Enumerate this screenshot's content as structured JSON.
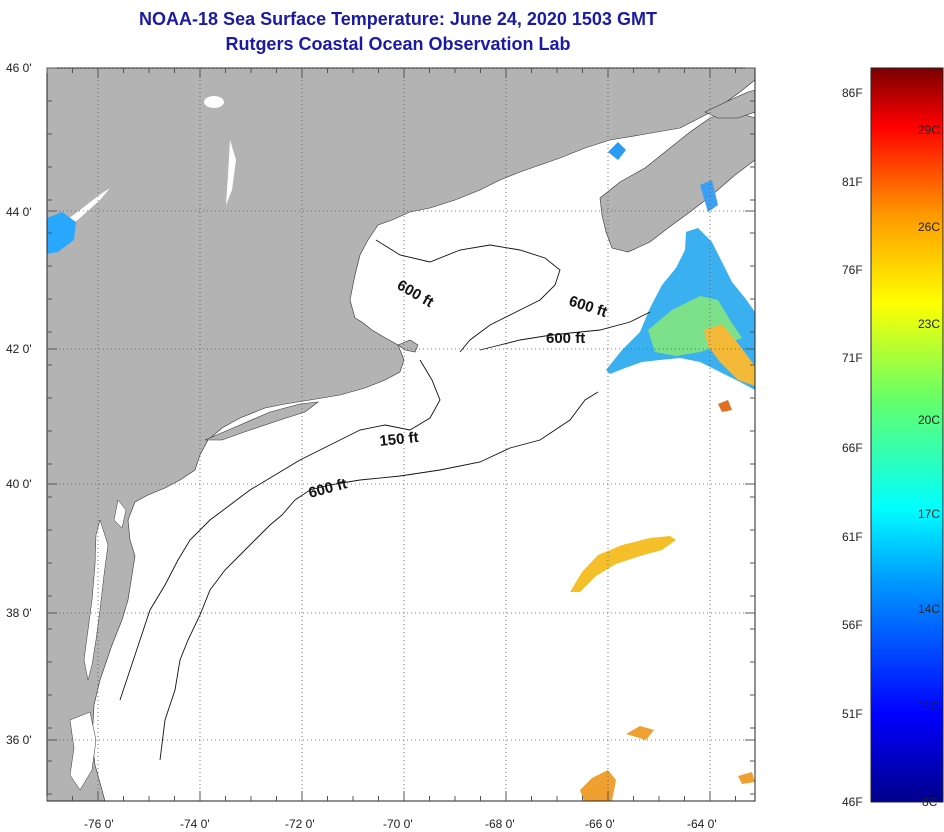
{
  "header": {
    "title": "NOAA-18 Sea Surface Temperature:  June 24, 2020 1503 GMT",
    "subtitle": "Rutgers Coastal Ocean Observation Lab"
  },
  "map": {
    "lat_labels": [
      "46 0'",
      "44 0'",
      "42 0'",
      "40 0'",
      "38 0'",
      "36 0'"
    ],
    "lon_labels": [
      "-76 0'",
      "-74 0'",
      "-72 0'",
      "-70 0'",
      "-68 0'",
      "-66 0'",
      "-64 0'"
    ],
    "contour_labels": [
      "600 ft",
      "600 ft",
      "600 ft",
      "150 ft",
      "600 ft"
    ],
    "colors": {
      "land": "#b3b3b3",
      "ocean": "#ffffff",
      "grid": "#555555"
    }
  },
  "colorbar": {
    "fahrenheit_labels": [
      "86F",
      "81F",
      "76F",
      "71F",
      "66F",
      "61F",
      "56F",
      "51F",
      "46F"
    ],
    "celsius_labels": [
      "29C",
      "26C",
      "23C",
      "20C",
      "17C",
      "14C",
      "11C",
      "8C"
    ]
  }
}
